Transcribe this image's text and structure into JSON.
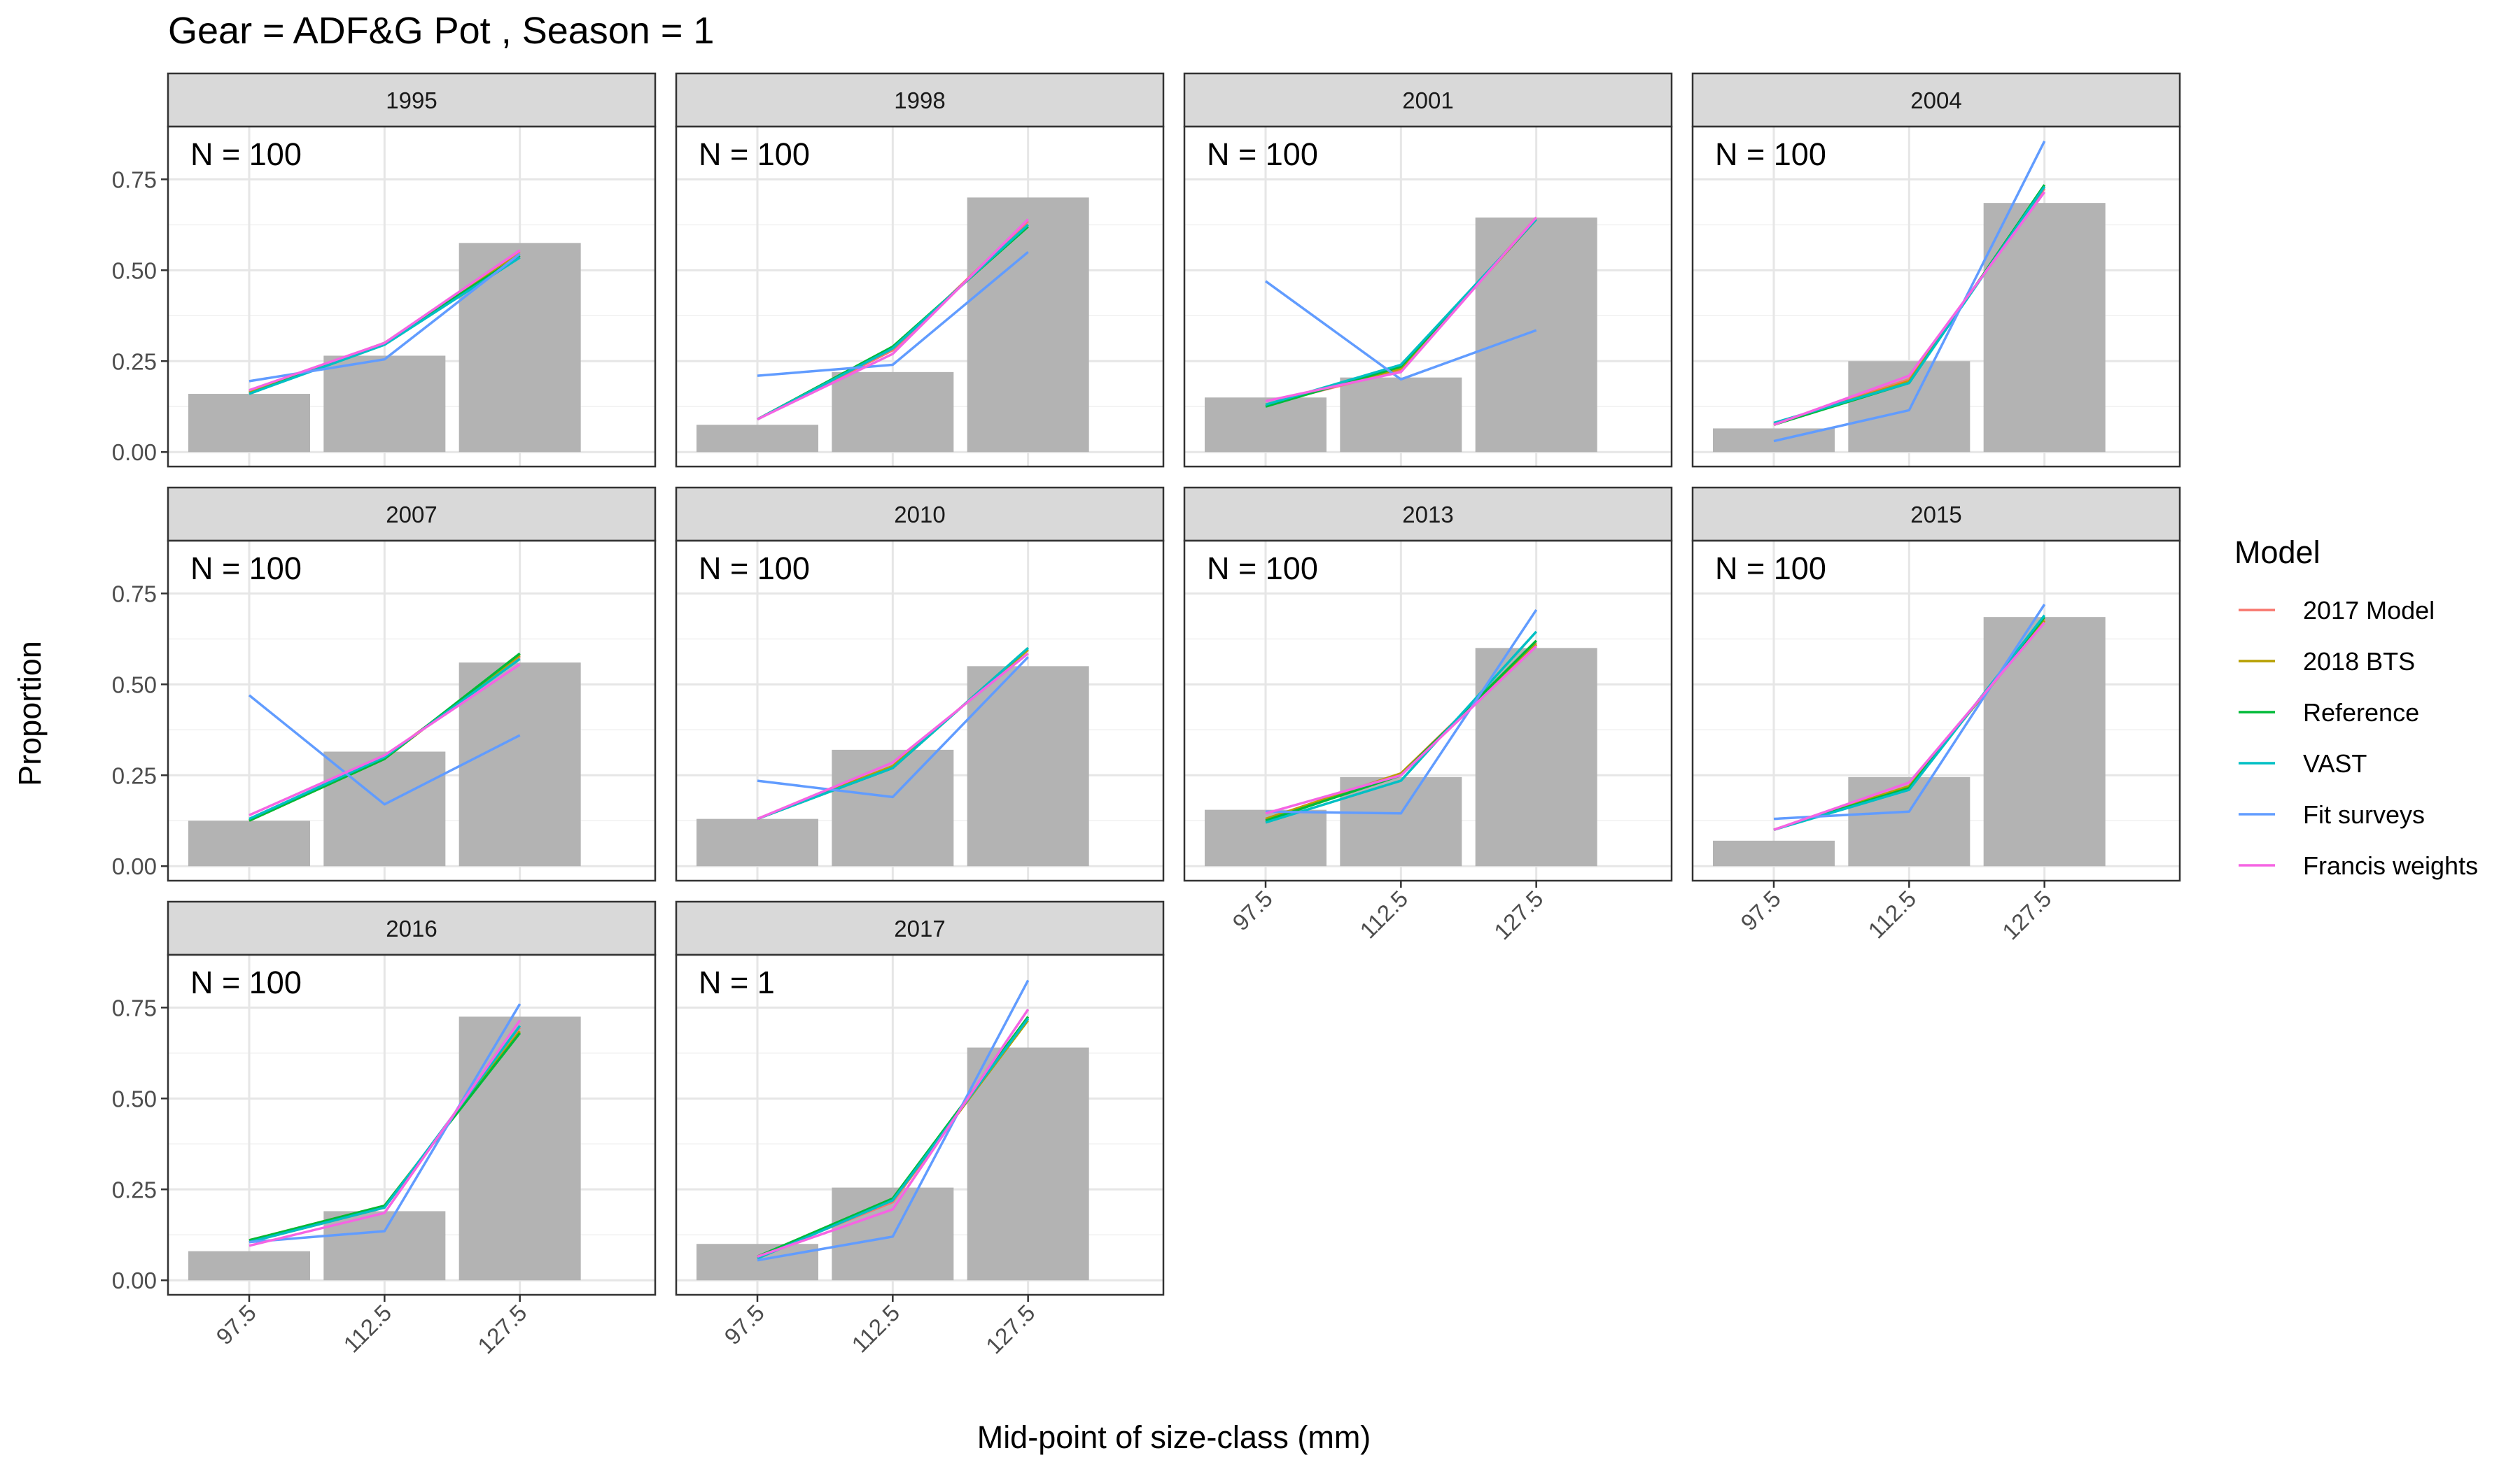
{
  "title": "Gear = ADF&G Pot , Season = 1",
  "chart_data": {
    "type": "bar+line",
    "title": "Gear = ADF&G Pot , Season = 1",
    "xlabel": "Mid-point of size-class (mm)",
    "ylabel": "Proportion",
    "categories": [
      "97.5",
      "112.5",
      "127.5"
    ],
    "ylim": [
      -0.04,
      0.895
    ],
    "yticks": [
      "0.00",
      "0.25",
      "0.50",
      "0.75"
    ],
    "grid": true,
    "legend": {
      "title": "Model",
      "placement": "right",
      "entries": [
        "2017 Model",
        "2018 BTS",
        "Reference",
        "VAST",
        "Fit surveys",
        "Francis weights"
      ]
    },
    "series_colors": {
      "2017 Model": "#F8766D",
      "2018 BTS": "#B79F00",
      "Reference": "#00BA38",
      "VAST": "#00BFC4",
      "Fit surveys": "#619CFF",
      "Francis weights": "#F564E3"
    },
    "bar_color": "#b3b3b3",
    "panels": [
      {
        "year": "1995",
        "n_label": "N = 100",
        "observed": [
          0.16,
          0.265,
          0.575
        ],
        "series": {
          "2017 Model": [
            0.165,
            0.3,
            0.55
          ],
          "2018 BTS": [
            0.165,
            0.3,
            0.545
          ],
          "Reference": [
            0.16,
            0.3,
            0.54
          ],
          "VAST": [
            0.16,
            0.295,
            0.535
          ],
          "Fit surveys": [
            0.195,
            0.255,
            0.545
          ],
          "Francis weights": [
            0.17,
            0.3,
            0.555
          ]
        }
      },
      {
        "year": "1998",
        "n_label": "N = 100",
        "observed": [
          0.075,
          0.22,
          0.7
        ],
        "series": {
          "2017 Model": [
            0.09,
            0.28,
            0.635
          ],
          "2018 BTS": [
            0.09,
            0.285,
            0.625
          ],
          "Reference": [
            0.09,
            0.29,
            0.62
          ],
          "VAST": [
            0.09,
            0.285,
            0.625
          ],
          "Fit surveys": [
            0.21,
            0.24,
            0.55
          ],
          "Francis weights": [
            0.09,
            0.27,
            0.64
          ]
        }
      },
      {
        "year": "2001",
        "n_label": "N = 100",
        "observed": [
          0.15,
          0.205,
          0.645
        ],
        "series": {
          "2017 Model": [
            0.13,
            0.225,
            0.645
          ],
          "2018 BTS": [
            0.13,
            0.23,
            0.64
          ],
          "Reference": [
            0.125,
            0.235,
            0.64
          ],
          "VAST": [
            0.13,
            0.24,
            0.64
          ],
          "Fit surveys": [
            0.47,
            0.2,
            0.335
          ],
          "Francis weights": [
            0.14,
            0.22,
            0.645
          ]
        }
      },
      {
        "year": "2004",
        "n_label": "N = 100",
        "observed": [
          0.065,
          0.25,
          0.685
        ],
        "series": {
          "2017 Model": [
            0.075,
            0.2,
            0.725
          ],
          "2018 BTS": [
            0.075,
            0.195,
            0.73
          ],
          "Reference": [
            0.075,
            0.19,
            0.735
          ],
          "VAST": [
            0.08,
            0.19,
            0.73
          ],
          "Fit surveys": [
            0.03,
            0.115,
            0.855
          ],
          "Francis weights": [
            0.075,
            0.21,
            0.715
          ]
        }
      },
      {
        "year": "2007",
        "n_label": "N = 100",
        "observed": [
          0.125,
          0.315,
          0.56
        ],
        "series": {
          "2017 Model": [
            0.125,
            0.3,
            0.575
          ],
          "2018 BTS": [
            0.125,
            0.295,
            0.58
          ],
          "Reference": [
            0.125,
            0.295,
            0.585
          ],
          "VAST": [
            0.13,
            0.3,
            0.57
          ],
          "Fit surveys": [
            0.47,
            0.17,
            0.36
          ],
          "Francis weights": [
            0.14,
            0.305,
            0.555
          ]
        }
      },
      {
        "year": "2010",
        "n_label": "N = 100",
        "observed": [
          0.13,
          0.32,
          0.55
        ],
        "series": {
          "2017 Model": [
            0.13,
            0.275,
            0.595
          ],
          "2018 BTS": [
            0.13,
            0.275,
            0.595
          ],
          "Reference": [
            0.13,
            0.27,
            0.6
          ],
          "VAST": [
            0.13,
            0.27,
            0.6
          ],
          "Fit surveys": [
            0.235,
            0.19,
            0.575
          ],
          "Francis weights": [
            0.13,
            0.285,
            0.585
          ]
        }
      },
      {
        "year": "2013",
        "n_label": "N = 100",
        "observed": [
          0.155,
          0.245,
          0.6
        ],
        "series": {
          "2017 Model": [
            0.13,
            0.255,
            0.615
          ],
          "2018 BTS": [
            0.13,
            0.255,
            0.61
          ],
          "Reference": [
            0.125,
            0.25,
            0.62
          ],
          "VAST": [
            0.12,
            0.235,
            0.645
          ],
          "Fit surveys": [
            0.15,
            0.145,
            0.705
          ],
          "Francis weights": [
            0.145,
            0.25,
            0.605
          ]
        }
      },
      {
        "year": "2015",
        "n_label": "N = 100",
        "observed": [
          0.07,
          0.245,
          0.685
        ],
        "series": {
          "2017 Model": [
            0.1,
            0.22,
            0.68
          ],
          "2018 BTS": [
            0.1,
            0.22,
            0.675
          ],
          "Reference": [
            0.1,
            0.215,
            0.685
          ],
          "VAST": [
            0.1,
            0.21,
            0.69
          ],
          "Fit surveys": [
            0.13,
            0.15,
            0.72
          ],
          "Francis weights": [
            0.1,
            0.23,
            0.67
          ]
        }
      },
      {
        "year": "2016",
        "n_label": "N = 100",
        "observed": [
          0.08,
          0.19,
          0.725
        ],
        "series": {
          "2017 Model": [
            0.105,
            0.2,
            0.695
          ],
          "2018 BTS": [
            0.11,
            0.205,
            0.685
          ],
          "Reference": [
            0.11,
            0.205,
            0.68
          ],
          "VAST": [
            0.105,
            0.2,
            0.7
          ],
          "Fit surveys": [
            0.105,
            0.135,
            0.76
          ],
          "Francis weights": [
            0.095,
            0.185,
            0.715
          ]
        }
      },
      {
        "year": "2017",
        "n_label": "N = 1",
        "observed": [
          0.1,
          0.255,
          0.64
        ],
        "series": {
          "2017 Model": [
            0.065,
            0.215,
            0.72
          ],
          "2018 BTS": [
            0.065,
            0.22,
            0.715
          ],
          "Reference": [
            0.065,
            0.225,
            0.725
          ],
          "VAST": [
            0.06,
            0.22,
            0.72
          ],
          "Fit surveys": [
            0.055,
            0.12,
            0.825
          ],
          "Francis weights": [
            0.065,
            0.195,
            0.745
          ]
        }
      }
    ]
  }
}
